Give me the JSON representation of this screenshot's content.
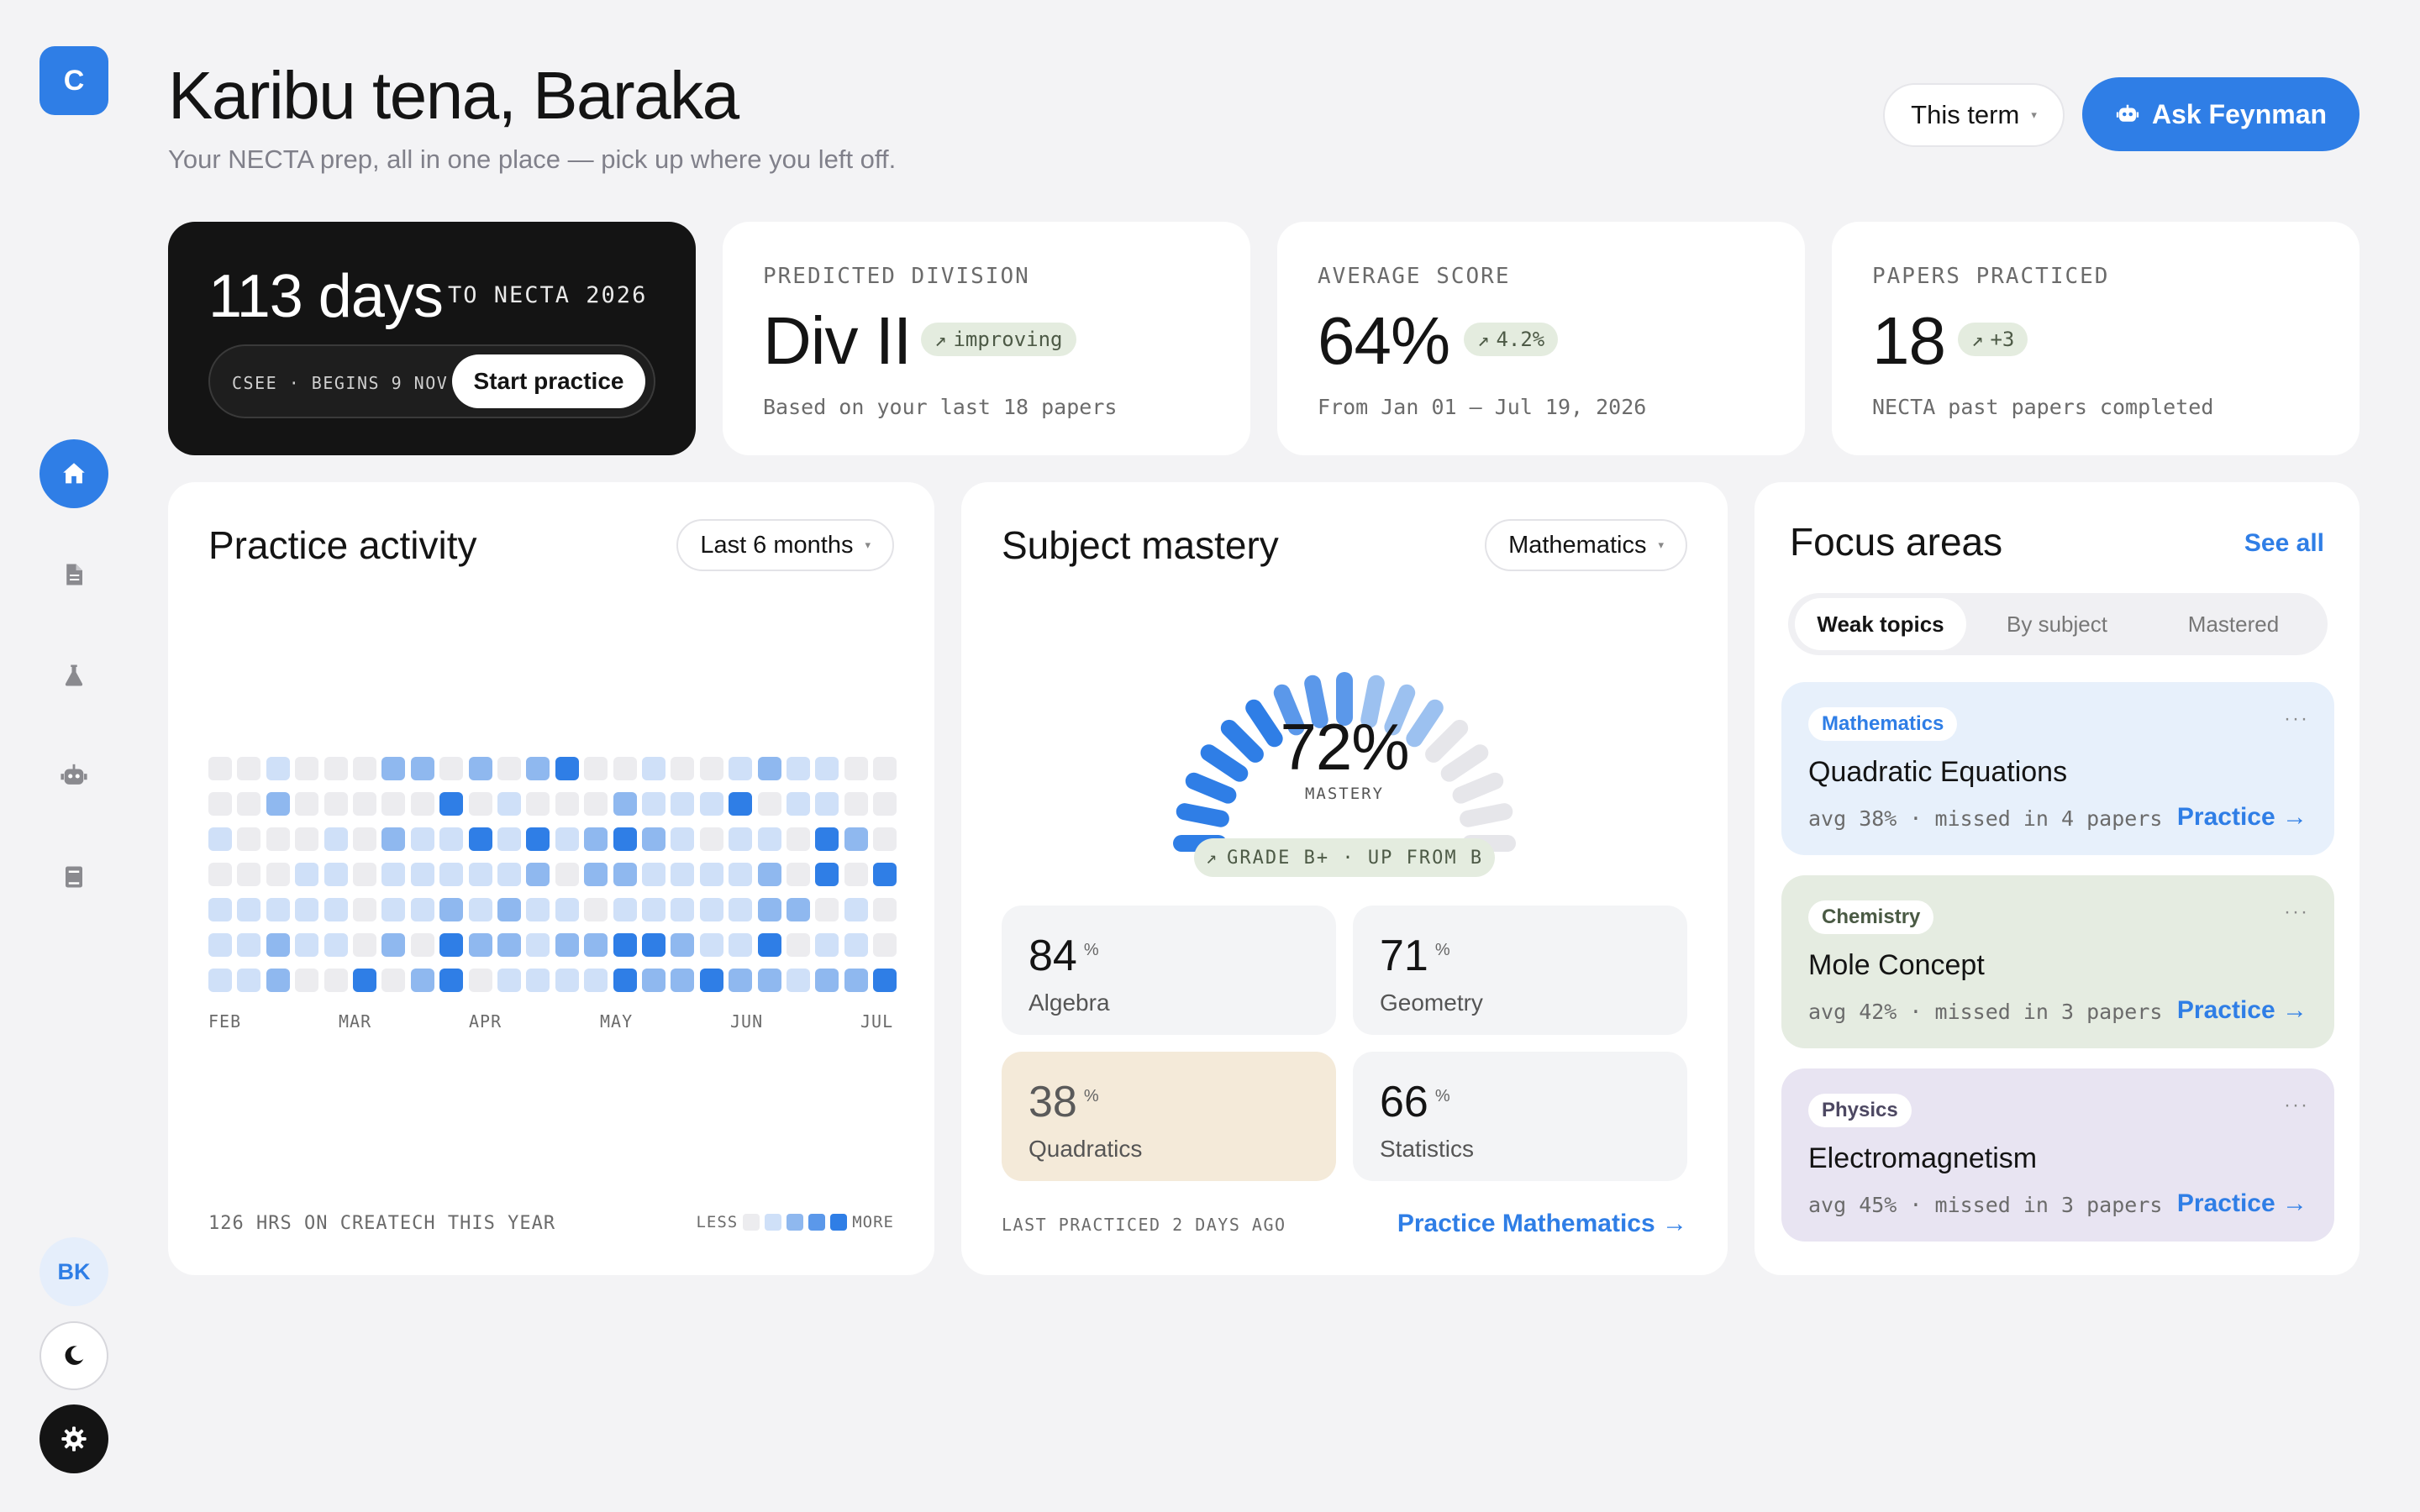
{
  "app": {
    "logo_letter": "C",
    "accent": "#2f7ee6"
  },
  "sidebar": {
    "items": [
      {
        "name": "home",
        "icon": "home-icon",
        "active": true
      },
      {
        "name": "papers",
        "icon": "document-icon",
        "active": false
      },
      {
        "name": "lab",
        "icon": "flask-icon",
        "active": false
      },
      {
        "name": "tutor",
        "icon": "robot-icon",
        "active": false
      },
      {
        "name": "library",
        "icon": "book-icon",
        "active": false
      }
    ],
    "avatar_initials": "BK",
    "theme_icon": "moon-icon",
    "settings_icon": "gear-icon"
  },
  "header": {
    "title": "Karibu tena, Baraka",
    "subtitle": "Your NECTA prep, all in one place — pick up where you left off.",
    "term_label": "This term",
    "ask_label": "Ask Feynman"
  },
  "countdown": {
    "days": "113 days",
    "to": "TO NECTA 2026",
    "pill_text": "CSEE · BEGINS 9 NOV",
    "start_label": "Start practice"
  },
  "stats": [
    {
      "label": "PREDICTED DIVISION",
      "value": "Div II",
      "badge": "improving",
      "note": "Based on your last 18 papers"
    },
    {
      "label": "AVERAGE SCORE",
      "value": "64%",
      "badge": "4.2%",
      "note": "From Jan 01 – Jul 19, 2026"
    },
    {
      "label": "PAPERS PRACTICED",
      "value": "18",
      "badge": "+3",
      "note": "NECTA past papers completed"
    }
  ],
  "activity": {
    "title": "Practice activity",
    "range": "Last 6 months",
    "months": [
      "FEB",
      "MAR",
      "APR",
      "MAY",
      "JUN",
      "JUL"
    ],
    "footer": "126 HRS ON CREATECH THIS YEAR",
    "legend_less": "LESS",
    "legend_more": "MORE",
    "levels": [
      [
        0,
        0,
        1,
        0,
        0,
        0,
        2,
        2,
        0,
        2,
        0,
        2,
        3,
        0,
        0,
        1,
        0,
        0,
        1,
        2,
        1,
        1,
        0,
        0
      ],
      [
        0,
        0,
        2,
        0,
        0,
        0,
        0,
        0,
        3,
        0,
        1,
        0,
        0,
        0,
        2,
        1,
        1,
        1,
        3,
        0,
        1,
        1,
        0,
        0
      ],
      [
        1,
        0,
        0,
        0,
        1,
        0,
        2,
        1,
        1,
        3,
        1,
        3,
        1,
        2,
        3,
        2,
        1,
        0,
        1,
        1,
        0,
        3,
        2,
        0
      ],
      [
        0,
        0,
        0,
        1,
        1,
        0,
        1,
        1,
        1,
        1,
        1,
        2,
        0,
        2,
        2,
        1,
        1,
        1,
        1,
        2,
        0,
        3,
        0,
        3
      ],
      [
        1,
        1,
        1,
        1,
        1,
        0,
        1,
        1,
        2,
        1,
        2,
        1,
        1,
        0,
        1,
        1,
        1,
        1,
        1,
        2,
        2,
        0,
        1,
        0
      ],
      [
        1,
        1,
        2,
        1,
        1,
        0,
        2,
        0,
        3,
        2,
        2,
        1,
        2,
        2,
        3,
        3,
        2,
        1,
        1,
        3,
        0,
        1,
        1,
        0
      ],
      [
        1,
        1,
        2,
        0,
        0,
        3,
        0,
        2,
        3,
        0,
        1,
        1,
        1,
        1,
        3,
        2,
        2,
        3,
        2,
        2,
        1,
        2,
        2,
        3
      ]
    ]
  },
  "mastery": {
    "title": "Subject mastery",
    "subject": "Mathematics",
    "value": "72%",
    "fraction": 0.72,
    "label": "MASTERY",
    "grade": "GRADE B+ · UP FROM B",
    "tiles": [
      {
        "value": "84",
        "unit": "%",
        "name": "Algebra"
      },
      {
        "value": "71",
        "unit": "%",
        "name": "Geometry"
      },
      {
        "value": "38",
        "unit": "%",
        "name": "Quadratics"
      },
      {
        "value": "66",
        "unit": "%",
        "name": "Statistics"
      }
    ],
    "footer": "LAST PRACTICED 2 DAYS AGO",
    "link": "Practice Mathematics →"
  },
  "focus": {
    "title": "Focus areas",
    "see_all": "See all",
    "tabs": [
      "Weak topics",
      "By subject",
      "Mastered"
    ],
    "cards": [
      {
        "subject": "Mathematics",
        "topic": "Quadratic Equations",
        "meta": "avg 38% · missed in 4 papers",
        "action": "Practice →",
        "bg": "#e7f0fb",
        "tag_color": "#2f7ee6"
      },
      {
        "subject": "Chemistry",
        "topic": "Mole Concept",
        "meta": "avg 42% · missed in 3 papers",
        "action": "Practice →",
        "bg": "#e5ece1",
        "tag_color": "#4a5a44"
      },
      {
        "subject": "Physics",
        "topic": "Electromagnetism",
        "meta": "avg 45% · missed in 3 papers",
        "action": "Practice →",
        "bg": "#e8e4f2",
        "tag_color": "#4d4862"
      }
    ]
  },
  "more_glyph": "···",
  "arrow_glyph": "↗"
}
